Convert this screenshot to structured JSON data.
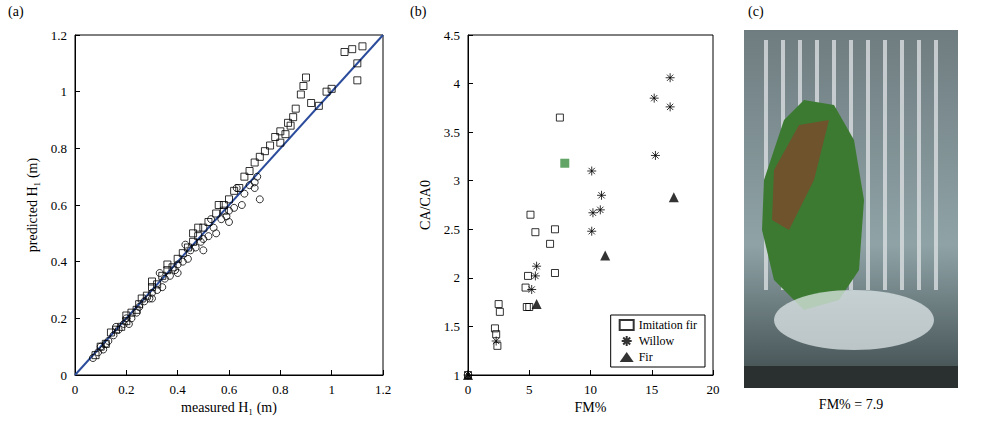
{
  "chart_data": [
    {
      "type": "scatter",
      "panel_label": "(a)",
      "xlabel": "measured H₁ (m)",
      "ylabel": "predicted H₁ (m)",
      "xlim": [
        0,
        1.2
      ],
      "xticks": [
        0,
        0.2,
        0.4,
        0.6,
        0.8,
        1,
        1.2
      ],
      "ylim": [
        0,
        1.2
      ],
      "yticks": [
        0,
        0.2,
        0.4,
        0.6,
        0.8,
        1,
        1.2
      ],
      "grid": false,
      "series": [
        {
          "marker": "square-open",
          "color": "#000000",
          "x": [
            0.08,
            0.1,
            0.12,
            0.14,
            0.16,
            0.18,
            0.2,
            0.22,
            0.24,
            0.26,
            0.28,
            0.3,
            0.32,
            0.34,
            0.36,
            0.38,
            0.4,
            0.42,
            0.44,
            0.46,
            0.48,
            0.5,
            0.52,
            0.55,
            0.58,
            0.6,
            0.62,
            0.64,
            0.66,
            0.68,
            0.7,
            0.72,
            0.74,
            0.76,
            0.78,
            0.8,
            0.82,
            0.83,
            0.85,
            0.86,
            0.88,
            0.89,
            0.9,
            0.92,
            0.95,
            0.98,
            1.0,
            1.05,
            1.08,
            1.1,
            1.12,
            1.1,
            0.8,
            0.84,
            0.58,
            0.56,
            0.48,
            0.46,
            0.36,
            0.3,
            0.25,
            0.2
          ],
          "y": [
            0.07,
            0.1,
            0.11,
            0.15,
            0.16,
            0.17,
            0.21,
            0.22,
            0.23,
            0.27,
            0.28,
            0.31,
            0.32,
            0.35,
            0.37,
            0.38,
            0.41,
            0.43,
            0.45,
            0.47,
            0.49,
            0.52,
            0.54,
            0.57,
            0.6,
            0.62,
            0.65,
            0.66,
            0.7,
            0.72,
            0.75,
            0.77,
            0.79,
            0.81,
            0.84,
            0.86,
            0.85,
            0.89,
            0.91,
            0.94,
            0.99,
            1.02,
            1.05,
            0.96,
            0.95,
            1.0,
            1.01,
            1.14,
            1.15,
            1.1,
            1.16,
            1.04,
            0.82,
            0.88,
            0.58,
            0.6,
            0.52,
            0.5,
            0.39,
            0.33,
            0.25,
            0.19
          ]
        },
        {
          "marker": "circle-open",
          "color": "#000000",
          "x": [
            0.07,
            0.09,
            0.1,
            0.12,
            0.13,
            0.15,
            0.17,
            0.19,
            0.2,
            0.22,
            0.24,
            0.25,
            0.27,
            0.29,
            0.3,
            0.32,
            0.34,
            0.35,
            0.37,
            0.39,
            0.4,
            0.42,
            0.44,
            0.45,
            0.47,
            0.49,
            0.5,
            0.52,
            0.54,
            0.55,
            0.57,
            0.59,
            0.6,
            0.62,
            0.65,
            0.66,
            0.68,
            0.7,
            0.71,
            0.72,
            0.7,
            0.6,
            0.5,
            0.4,
            0.3,
            0.21,
            0.16,
            0.11,
            0.33,
            0.43,
            0.53,
            0.63
          ],
          "y": [
            0.06,
            0.08,
            0.1,
            0.11,
            0.12,
            0.14,
            0.16,
            0.18,
            0.2,
            0.2,
            0.22,
            0.24,
            0.26,
            0.27,
            0.29,
            0.3,
            0.31,
            0.34,
            0.35,
            0.37,
            0.39,
            0.4,
            0.41,
            0.44,
            0.45,
            0.47,
            0.48,
            0.49,
            0.52,
            0.5,
            0.55,
            0.56,
            0.58,
            0.59,
            0.6,
            0.64,
            0.67,
            0.68,
            0.7,
            0.62,
            0.66,
            0.54,
            0.44,
            0.36,
            0.27,
            0.18,
            0.17,
            0.09,
            0.36,
            0.46,
            0.55,
            0.66
          ]
        },
        {
          "type": "line",
          "line_style": "solid",
          "color": "#2b4c9c",
          "x": [
            0,
            1.2
          ],
          "y": [
            0,
            1.2
          ]
        }
      ]
    },
    {
      "type": "scatter",
      "panel_label": "(b)",
      "xlabel": "FM%",
      "ylabel": "CA/CA0",
      "xlim": [
        0,
        20
      ],
      "xticks": [
        0,
        5,
        10,
        15,
        20
      ],
      "ylim": [
        1,
        4.5
      ],
      "yticks": [
        1,
        1.5,
        2,
        2.5,
        3,
        3.5,
        4,
        4.5
      ],
      "grid": false,
      "legend": "lower right",
      "series": [
        {
          "name": "Imitation fir",
          "marker": "square-open",
          "color": "#000000",
          "x": [
            0,
            2.2,
            2.3,
            2.4,
            2.5,
            2.6,
            4.7,
            4.8,
            4.9,
            5.0,
            5.1,
            5.5,
            6.7,
            7.1,
            7.1,
            7.5
          ],
          "y": [
            1.0,
            1.48,
            1.42,
            1.3,
            1.73,
            1.65,
            1.9,
            1.7,
            2.02,
            1.7,
            2.65,
            2.47,
            2.35,
            2.5,
            2.05,
            3.65
          ]
        },
        {
          "name": "Willow",
          "marker": "asterisk",
          "color": "#000000",
          "x": [
            0,
            2.3,
            5.2,
            5.5,
            5.6,
            10.1,
            10.1,
            10.2,
            10.8,
            10.9,
            15.2,
            15.3,
            16.5,
            16.5
          ],
          "y": [
            1.0,
            1.35,
            1.88,
            2.02,
            2.12,
            3.1,
            2.48,
            2.67,
            2.7,
            2.85,
            3.85,
            3.26,
            4.06,
            3.76
          ]
        },
        {
          "name": "Fir",
          "marker": "triangle",
          "color": "#000000",
          "x": [
            0,
            5.6,
            11.2,
            16.8
          ],
          "y": [
            1.0,
            1.73,
            2.23,
            2.83
          ]
        },
        {
          "marker": "square",
          "color": "#3a8d3f",
          "x": [
            7.9
          ],
          "y": [
            3.18
          ]
        }
      ]
    }
  ],
  "photo_panel": {
    "panel_label": "(c)",
    "caption": "FM% = 7.9"
  }
}
